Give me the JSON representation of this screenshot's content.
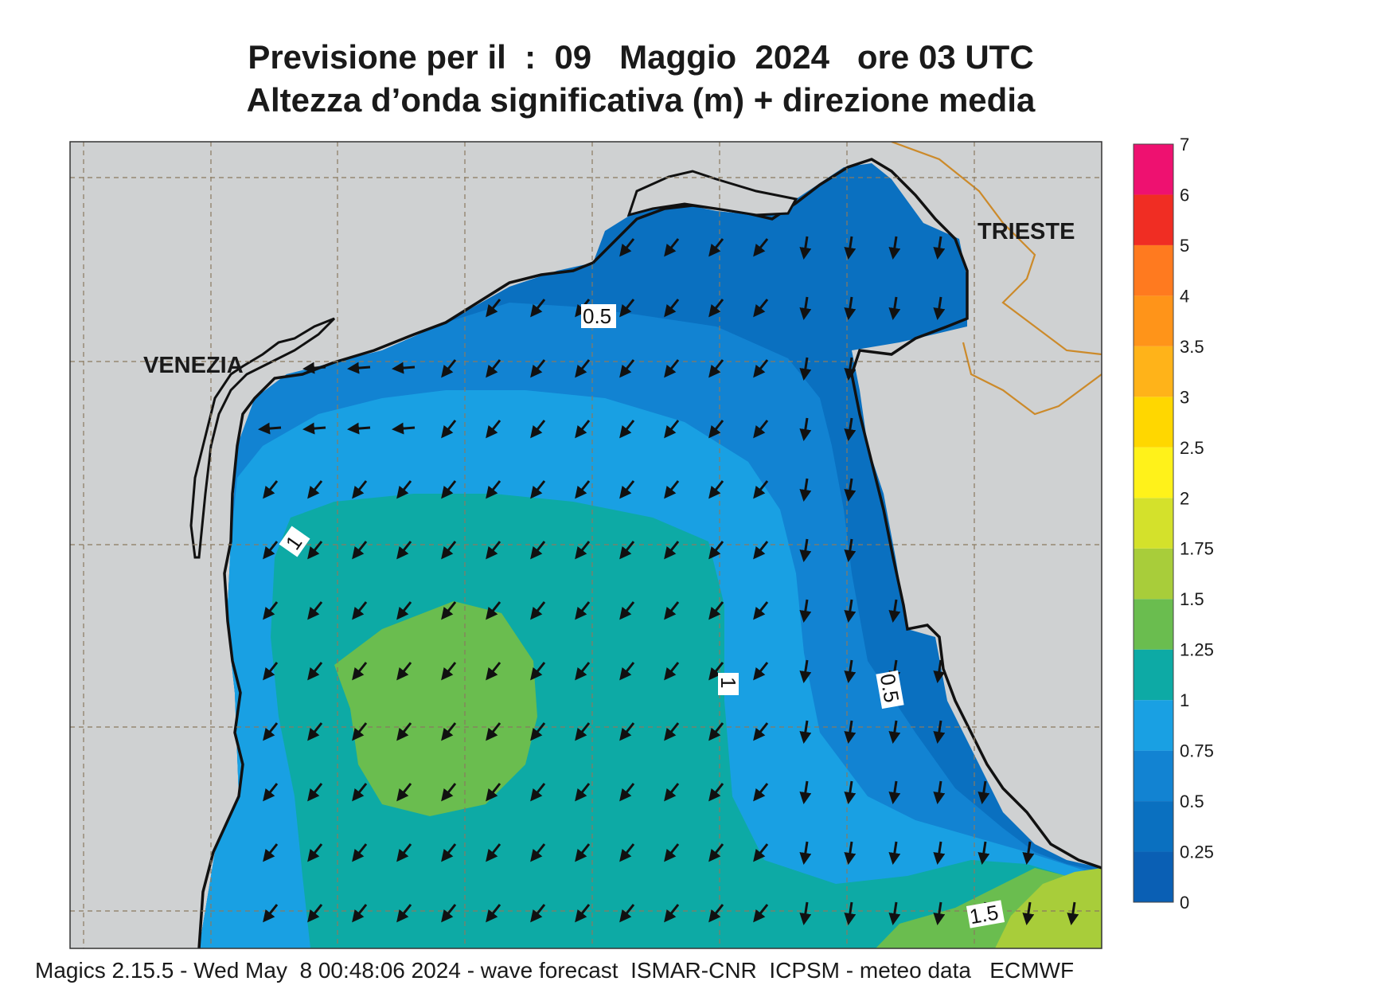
{
  "title": {
    "line1": "Previsione per il  :  09   Maggio  2024   ore 03 UTC",
    "line2": "Altezza d’onda significativa (m) + direzione media"
  },
  "cities": [
    {
      "name": "VENEZIA"
    },
    {
      "name": "TRIESTE"
    }
  ],
  "contour_labels": [
    "0.5",
    "1",
    "1",
    "0.5",
    "1.5"
  ],
  "colorbar": {
    "levels": [
      "0",
      "0.25",
      "0.5",
      "0.75",
      "1",
      "1.25",
      "1.5",
      "1.75",
      "2",
      "2.5",
      "3",
      "3.5",
      "4",
      "5",
      "6",
      "7"
    ],
    "colors": [
      "#0a5fb4",
      "#0a70c0",
      "#1283d2",
      "#19a0e3",
      "#0daaa5",
      "#6abd4f",
      "#a8cd3a",
      "#d4e12b",
      "#fff21a",
      "#ffd700",
      "#ffb319",
      "#ff9419",
      "#ff7a1f",
      "#f02d23",
      "#ee1170"
    ]
  },
  "colors": {
    "land": "#cfd1d2",
    "sea_band_025_05": "#0a70c0",
    "sea_band_05_075": "#1283d2",
    "sea_band_075_1": "#19a0e3",
    "sea_band_1_125": "#0daaa5",
    "sea_band_125_15": "#6abd4f",
    "sea_band_15_175": "#a8cd3a",
    "border": "#cc8a2a"
  },
  "footer": "Magics 2.15.5 - Wed May  8 00:48:06 2024 - wave forecast  ISMAR-CNR  ICPSM - meteo data   ECMWF"
}
